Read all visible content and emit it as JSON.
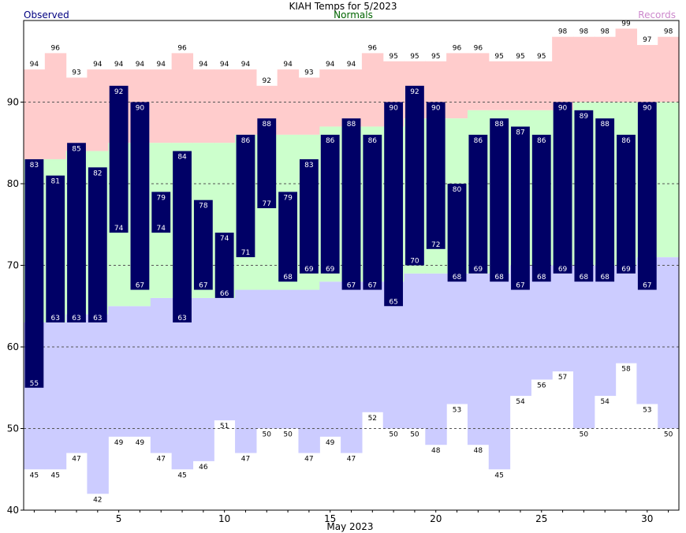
{
  "chart_data": {
    "type": "bar",
    "title": "KIAH Temps for 5/2023",
    "xlabel": "May 2023",
    "ylabel": "",
    "ylim": [
      40,
      100
    ],
    "yticks": [
      40,
      50,
      60,
      70,
      80,
      90
    ],
    "xticks": [
      5,
      10,
      15,
      20,
      25,
      30
    ],
    "legend": {
      "observed": "Observed",
      "normals": "Normals",
      "records": "Records"
    },
    "colors": {
      "observed": "#000066",
      "normals": "#ccffcc",
      "records_high": "#ffcccc",
      "records_low": "#ccccff",
      "legend_observed": "#000080",
      "legend_normals": "#006400",
      "legend_records": "#cc88cc",
      "grid": "#555555"
    },
    "grid": true,
    "days": [
      1,
      2,
      3,
      4,
      5,
      6,
      7,
      8,
      9,
      10,
      11,
      12,
      13,
      14,
      15,
      16,
      17,
      18,
      19,
      20,
      21,
      22,
      23,
      24,
      25,
      26,
      27,
      28,
      29,
      30,
      31
    ],
    "series": [
      {
        "name": "Observed High",
        "values": [
          83,
          81,
          85,
          82,
          92,
          90,
          79,
          84,
          78,
          74,
          86,
          88,
          79,
          83,
          86,
          88,
          86,
          90,
          92,
          90,
          80,
          86,
          88,
          87,
          86,
          90,
          89,
          88,
          86,
          90,
          null
        ]
      },
      {
        "name": "Observed Low",
        "values": [
          55,
          63,
          63,
          63,
          74,
          67,
          74,
          63,
          67,
          66,
          71,
          77,
          68,
          69,
          69,
          67,
          67,
          65,
          70,
          72,
          68,
          69,
          68,
          67,
          68,
          69,
          68,
          68,
          69,
          67,
          null
        ]
      },
      {
        "name": "Normal High",
        "values": [
          83,
          83,
          84,
          84,
          85,
          85,
          85,
          85,
          85,
          85,
          86,
          86,
          86,
          86,
          87,
          87,
          87,
          87,
          88,
          88,
          88,
          89,
          89,
          89,
          89,
          89,
          90,
          90,
          90,
          90,
          90
        ]
      },
      {
        "name": "Normal Low",
        "values": [
          63,
          63,
          64,
          64,
          65,
          65,
          66,
          66,
          66,
          66,
          67,
          67,
          67,
          67,
          68,
          68,
          68,
          68,
          69,
          69,
          69,
          69,
          69,
          70,
          70,
          70,
          70,
          70,
          70,
          71,
          71
        ]
      },
      {
        "name": "Record High",
        "values": [
          94,
          96,
          93,
          94,
          94,
          94,
          94,
          96,
          94,
          94,
          94,
          92,
          94,
          93,
          94,
          94,
          96,
          95,
          95,
          95,
          96,
          96,
          95,
          95,
          95,
          98,
          98,
          98,
          99,
          97,
          98
        ]
      },
      {
        "name": "Record Low",
        "values": [
          45,
          45,
          47,
          42,
          49,
          49,
          47,
          45,
          46,
          51,
          47,
          50,
          50,
          47,
          49,
          47,
          52,
          50,
          50,
          48,
          53,
          48,
          45,
          54,
          56,
          57,
          50,
          54,
          58,
          53,
          50
        ]
      }
    ]
  }
}
